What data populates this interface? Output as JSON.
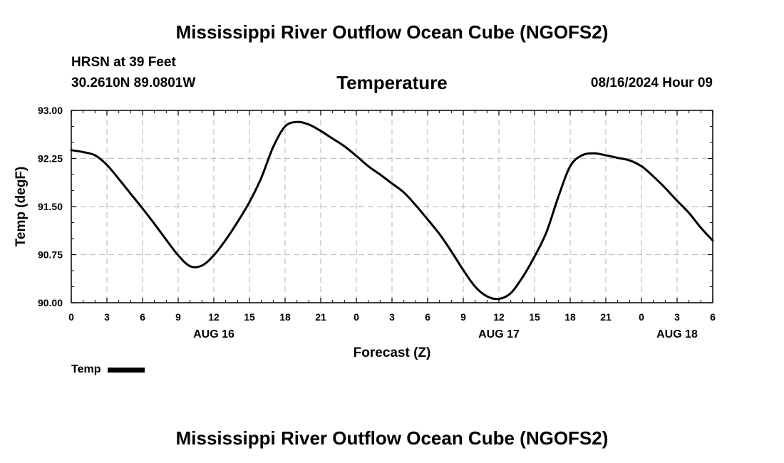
{
  "header": {
    "title": "Mississippi River Outflow Ocean Cube (NGOFS2)",
    "station": "HRSN at 39 Feet",
    "coords": "30.2610N  89.0801W",
    "subtitle": "Temperature",
    "datetime": "08/16/2024 Hour 09"
  },
  "footer": {
    "title": "Mississippi River Outflow Ocean Cube (NGOFS2)"
  },
  "legend": {
    "label": "Temp",
    "color": "#000000"
  },
  "chart_data": {
    "type": "line",
    "title": "Temperature",
    "xlabel": "Forecast (Z)",
    "ylabel": "Temp (degF)",
    "xlim": [
      0,
      54
    ],
    "ylim": [
      90.0,
      93.0
    ],
    "grid": true,
    "yticks": [
      90.0,
      90.75,
      91.5,
      92.25,
      93.0
    ],
    "ytick_labels": [
      "90.00",
      "90.75",
      "91.50",
      "92.25",
      "93.00"
    ],
    "xticks": [
      0,
      3,
      6,
      9,
      12,
      15,
      18,
      21,
      24,
      27,
      30,
      33,
      36,
      39,
      42,
      45,
      48,
      51,
      54
    ],
    "xtick_labels": [
      "0",
      "3",
      "6",
      "9",
      "12",
      "15",
      "18",
      "21",
      "0",
      "3",
      "6",
      "9",
      "12",
      "15",
      "18",
      "21",
      "0",
      "3",
      "6"
    ],
    "date_labels": [
      {
        "x": 12,
        "label": "AUG 16"
      },
      {
        "x": 36,
        "label": "AUG 17"
      },
      {
        "x": 51,
        "label": "AUG 18"
      }
    ],
    "series": [
      {
        "name": "Temp",
        "color": "#000000",
        "x": [
          0,
          1,
          2,
          3,
          4,
          5,
          6,
          7,
          8,
          9,
          10,
          11,
          12,
          13,
          14,
          15,
          16,
          17,
          18,
          19,
          20,
          21,
          22,
          23,
          24,
          25,
          26,
          27,
          28,
          29,
          30,
          31,
          32,
          33,
          34,
          35,
          36,
          37,
          38,
          39,
          40,
          41,
          42,
          43,
          44,
          45,
          46,
          47,
          48,
          49,
          50,
          51,
          52,
          53,
          54
        ],
        "values": [
          92.38,
          92.35,
          92.3,
          92.15,
          91.93,
          91.7,
          91.47,
          91.23,
          90.98,
          90.74,
          90.57,
          90.58,
          90.74,
          90.98,
          91.26,
          91.57,
          91.95,
          92.43,
          92.75,
          92.82,
          92.78,
          92.68,
          92.56,
          92.44,
          92.29,
          92.13,
          92.0,
          91.86,
          91.72,
          91.52,
          91.3,
          91.07,
          90.8,
          90.51,
          90.25,
          90.1,
          90.06,
          90.15,
          90.4,
          90.72,
          91.1,
          91.65,
          92.13,
          92.3,
          92.33,
          92.3,
          92.26,
          92.22,
          92.13,
          91.97,
          91.79,
          91.59,
          91.4,
          91.17,
          90.97
        ]
      }
    ]
  }
}
